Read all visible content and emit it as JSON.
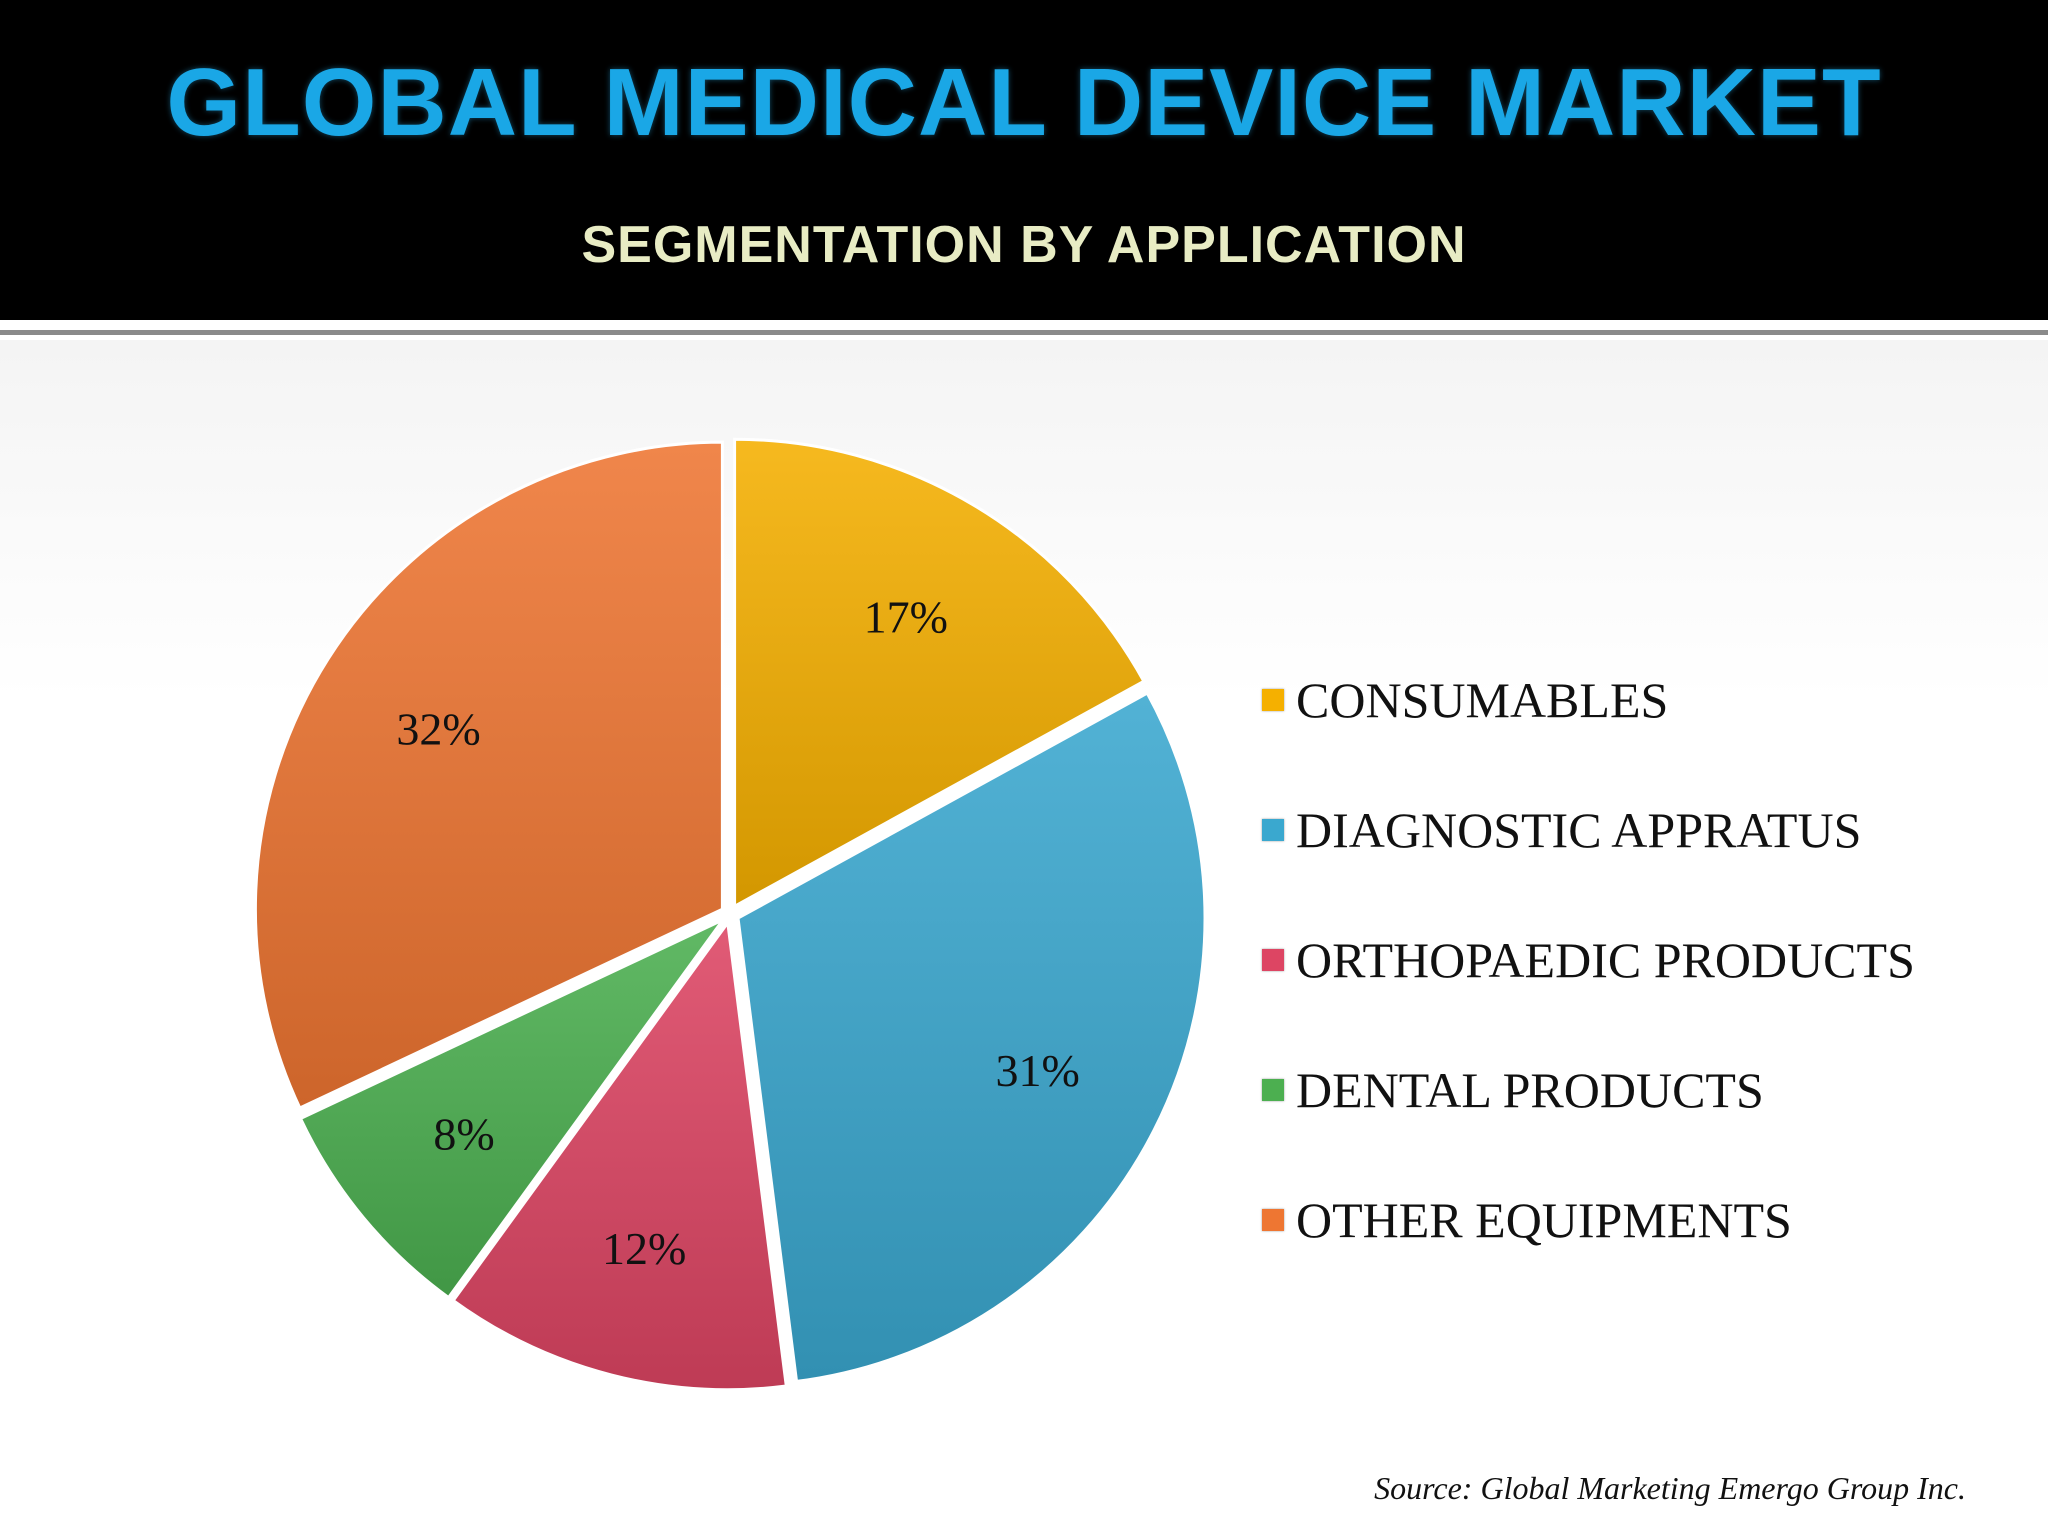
{
  "header": {
    "title": "GLOBAL MEDICAL DEVICE MARKET",
    "subtitle": "SEGMENTATION BY APPLICATION"
  },
  "chart_data": {
    "type": "pie",
    "title": "GLOBAL MEDICAL DEVICE MARKET",
    "subtitle": "SEGMENTATION BY APPLICATION",
    "legend_position": "right",
    "slices": [
      {
        "label": "CONSUMABLES",
        "value": 17,
        "display": "17%",
        "color": "#f5b000"
      },
      {
        "label": "DIAGNOSTIC APPRATUS",
        "value": 31,
        "display": "31%",
        "color": "#3aa8cf"
      },
      {
        "label": "ORTHOPAEDIC PRODUCTS",
        "value": 12,
        "display": "12%",
        "color": "#dd4563"
      },
      {
        "label": "DENTAL PRODUCTS",
        "value": 8,
        "display": "8%",
        "color": "#4caf50"
      },
      {
        "label": "OTHER EQUIPMENTS",
        "value": 32,
        "display": "32%",
        "color": "#ee7632"
      }
    ]
  },
  "footer": {
    "source": "Source: Global Marketing Emergo Group Inc."
  }
}
